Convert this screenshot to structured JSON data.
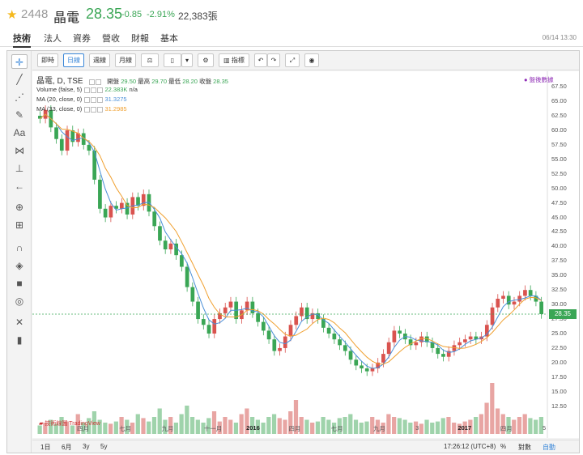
{
  "quote": {
    "code": "2448",
    "name": "晶電",
    "price": "28.35",
    "change": "-0.85",
    "change_pct": "-2.91%",
    "volume": "22,383張",
    "color_down": "#3aa655",
    "color_star": "#f5b81c"
  },
  "tabs": [
    {
      "label": "技術"
    },
    {
      "label": "法人"
    },
    {
      "label": "資券"
    },
    {
      "label": "營收"
    },
    {
      "label": "財報"
    },
    {
      "label": "基本"
    }
  ],
  "timestamp": "06/14 13:30",
  "toolbar": {
    "realtime": "即時",
    "daily": "日線",
    "weekly": "週線",
    "monthly": "月線",
    "indicators": "指標"
  },
  "legend": {
    "title": "晶電, D, TSE",
    "open_label": "開盤",
    "open": "29.50",
    "high_label": "最高",
    "high": "29.70",
    "low_label": "最低",
    "low": "28.20",
    "close_label": "收盤",
    "close": "28.35",
    "vol_label": "Volume (false, 5)",
    "vol_value": "22.383K",
    "vol_na": "n/a",
    "ma20_label": "MA (20, close, 0)",
    "ma20_value": "31.3275",
    "ma33_label": "MA (33, close, 0)",
    "ma33_value": "31.2985",
    "after_hours": "● 盤後數據"
  },
  "price_axis": [
    "67.50",
    "65.00",
    "62.50",
    "60.00",
    "57.50",
    "55.00",
    "52.50",
    "50.00",
    "47.50",
    "45.00",
    "42.50",
    "40.00",
    "37.50",
    "35.00",
    "32.50",
    "30.00",
    "27.50",
    "25.00",
    "22.50",
    "20.00",
    "17.50",
    "15.00",
    "12.50"
  ],
  "current_tag": "28.35",
  "x_labels": [
    {
      "t": "四月",
      "bold": false
    },
    {
      "t": "七月",
      "bold": false
    },
    {
      "t": "九月",
      "bold": false
    },
    {
      "t": "十一月",
      "bold": false
    },
    {
      "t": "2016",
      "bold": true
    },
    {
      "t": "四月",
      "bold": false
    },
    {
      "t": "七月",
      "bold": false
    },
    {
      "t": "九月",
      "bold": false
    },
    {
      "t": "3",
      "bold": false
    },
    {
      "t": "2017",
      "bold": true
    },
    {
      "t": "四月",
      "bold": false
    },
    {
      "t": "5",
      "bold": false
    }
  ],
  "bottom": {
    "ranges": [
      "1日",
      "6月",
      "3y",
      "5y"
    ],
    "time": "17:26:12 (UTC+8)",
    "pct": "%",
    "log": "對數",
    "auto": "自動"
  },
  "sidebar_icons": [
    "crosshair-icon",
    "trend-line-icon",
    "fib-icon",
    "brush-icon",
    "text-icon",
    "pattern-icon",
    "measure-icon",
    "arrow-icon",
    "zoom-icon",
    "ruler-icon",
    "magnet-icon",
    "lock-drawing-icon",
    "lock-icon",
    "eye-icon",
    "settings-tools-icon",
    "trash-icon"
  ],
  "chart_data": {
    "type": "candlestick",
    "closes": [
      62.0,
      63.5,
      60.5,
      58.5,
      56.5,
      60.0,
      58.0,
      59.5,
      57.5,
      56.5,
      51.5,
      46.5,
      45.0,
      47.0,
      46.5,
      47.5,
      45.5,
      48.5,
      47.0,
      49.0,
      46.0,
      43.5,
      41.0,
      39.5,
      40.5,
      38.5,
      36.5,
      33.0,
      30.5,
      27.5,
      26.5,
      25.0,
      27.5,
      28.5,
      29.5,
      30.5,
      27.5,
      29.0,
      30.5,
      28.5,
      27.0,
      25.5,
      24.0,
      22.0,
      22.5,
      24.5,
      26.5,
      28.0,
      29.5,
      27.5,
      28.5,
      27.5,
      26.0,
      25.0,
      24.0,
      23.0,
      22.0,
      20.5,
      19.5,
      19.0,
      18.5,
      19.0,
      20.0,
      21.5,
      23.5,
      25.5,
      25.0,
      24.0,
      23.0,
      23.5,
      24.5,
      23.5,
      22.5,
      21.5,
      21.0,
      22.0,
      23.0,
      23.5,
      24.0,
      24.5,
      24.0,
      24.5,
      26.5,
      29.5,
      31.0,
      31.5,
      30.0,
      30.5,
      31.5,
      32.5,
      31.5,
      30.5,
      28.35
    ],
    "volumes_rel": [
      0.15,
      0.2,
      0.25,
      0.18,
      0.3,
      0.22,
      0.15,
      0.35,
      0.2,
      0.28,
      0.4,
      0.25,
      0.2,
      0.18,
      0.22,
      0.3,
      0.25,
      0.2,
      0.35,
      0.28,
      0.22,
      0.3,
      0.45,
      0.25,
      0.3,
      0.2,
      0.35,
      0.5,
      0.3,
      0.25,
      0.2,
      0.28,
      0.4,
      0.22,
      0.3,
      0.25,
      0.2,
      0.35,
      0.45,
      0.3,
      0.25,
      0.2,
      0.3,
      0.35,
      0.28,
      0.25,
      0.4,
      0.6,
      0.3,
      0.25,
      0.2,
      0.22,
      0.3,
      0.25,
      0.2,
      0.28,
      0.3,
      0.35,
      0.25,
      0.2,
      0.22,
      0.3,
      0.25,
      0.2,
      0.35,
      0.3,
      0.28,
      0.25,
      0.2,
      0.22,
      0.18,
      0.25,
      0.2,
      0.22,
      0.28,
      0.3,
      0.2,
      0.18,
      0.22,
      0.25,
      0.3,
      0.35,
      0.55,
      0.9,
      0.45,
      0.35,
      0.3,
      0.25,
      0.3,
      0.35,
      0.28,
      0.25,
      0.3
    ],
    "ylim": [
      10.5,
      68.5
    ],
    "ma_colors": {
      "ma20": "#4a8fd8",
      "ma33": "#f0a030"
    },
    "up_color": "#d9534f",
    "down_color": "#3aa655"
  }
}
